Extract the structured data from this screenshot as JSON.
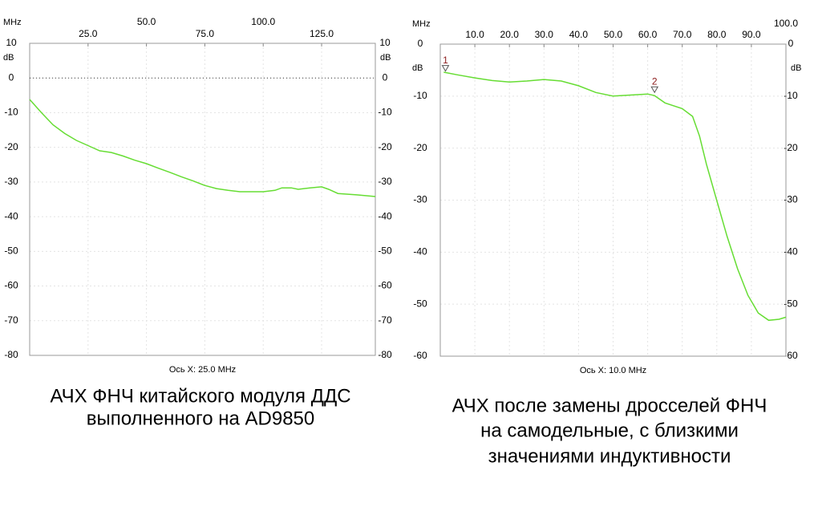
{
  "chart_data": [
    {
      "type": "line",
      "x_unit": "MHz",
      "y_unit": "dB",
      "x_axis_label": "Ось X: 25.0 MHz",
      "caption": [
        "АЧХ ФНЧ китайского модуля ДДС",
        "выполненного на AD9850"
      ],
      "xlim": [
        0,
        148
      ],
      "xticks": [
        {
          "value": 25,
          "label": "25.0"
        },
        {
          "value": 50,
          "label": "50.0"
        },
        {
          "value": 75,
          "label": "75.0"
        },
        {
          "value": 100,
          "label": "100.0"
        },
        {
          "value": 125,
          "label": "125.0"
        }
      ],
      "ylim": [
        -80,
        10
      ],
      "yticks": [
        10,
        0,
        -10,
        -20,
        -30,
        -40,
        -50,
        -60,
        -70,
        -80
      ],
      "ref_level": 0,
      "color": "#66dd33",
      "x": [
        0,
        5,
        10,
        15,
        20,
        25,
        30,
        35,
        40,
        45,
        50,
        55,
        60,
        65,
        70,
        75,
        80,
        85,
        90,
        95,
        100,
        105,
        108,
        112,
        115,
        120,
        125,
        128,
        132,
        140,
        148
      ],
      "values": [
        -6.2,
        -10,
        -13.5,
        -16,
        -18,
        -19.5,
        -21,
        -21.5,
        -22.5,
        -23.7,
        -24.7,
        -26,
        -27.2,
        -28.5,
        -29.7,
        -31,
        -31.9,
        -32.4,
        -32.8,
        -32.8,
        -32.8,
        -32.4,
        -31.7,
        -31.7,
        -32.1,
        -31.7,
        -31.4,
        -32.1,
        -33.3,
        -33.7,
        -34.2
      ]
    },
    {
      "type": "line",
      "x_unit": "MHz",
      "y_unit": "dB",
      "x_axis_label": "Ось X: 10.0 MHz",
      "caption": [
        "АЧХ  после замены дросселей ФНЧ",
        "на самодельные, с близкими",
        "значениями  индуктивности"
      ],
      "xlim": [
        0,
        100
      ],
      "xticks": [
        {
          "value": 10,
          "label": "10.0"
        },
        {
          "value": 20,
          "label": "20.0"
        },
        {
          "value": 30,
          "label": "30.0"
        },
        {
          "value": 40,
          "label": "40.0"
        },
        {
          "value": 50,
          "label": "50.0"
        },
        {
          "value": 60,
          "label": "60.0"
        },
        {
          "value": 70,
          "label": "70.0"
        },
        {
          "value": 80,
          "label": "80.0"
        },
        {
          "value": 90,
          "label": "90.0"
        },
        {
          "value": 100,
          "label": "100.0"
        }
      ],
      "ylim": [
        -60,
        0
      ],
      "yticks": [
        0,
        -10,
        -20,
        -30,
        -40,
        -50,
        -60
      ],
      "color": "#66dd33",
      "x": [
        1,
        5,
        10,
        15,
        20,
        25,
        30,
        35,
        40,
        45,
        50,
        55,
        60,
        62,
        65,
        70,
        73,
        75,
        77,
        80,
        83,
        86,
        89,
        92,
        95,
        98,
        100
      ],
      "values": [
        -5.4,
        -5.9,
        -6.5,
        -7,
        -7.3,
        -7.1,
        -6.8,
        -7.1,
        -8,
        -9.3,
        -10,
        -9.8,
        -9.6,
        -9.9,
        -11.3,
        -12.4,
        -13.9,
        -17.7,
        -23.1,
        -30.1,
        -37,
        -43.2,
        -48.3,
        -51.7,
        -53.1,
        -52.9,
        -52.5
      ],
      "markers": [
        {
          "label": "1",
          "x": 1.5,
          "y": -5.5
        },
        {
          "label": "2",
          "x": 62,
          "y": -9.6
        }
      ]
    }
  ]
}
